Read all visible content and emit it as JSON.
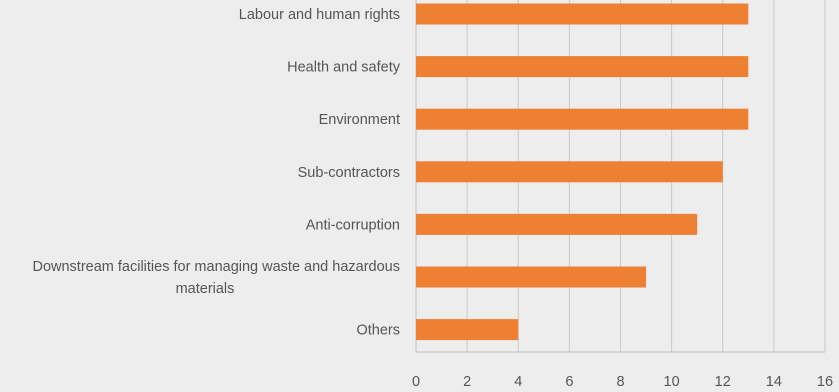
{
  "chart_data": {
    "type": "bar",
    "orientation": "horizontal",
    "categories": [
      "Labour and human rights",
      "Health and safety",
      "Environment",
      "Sub-contractors",
      "Anti-corruption",
      "Downstream facilities for managing waste and hazardous materials",
      "Others"
    ],
    "category_lines": [
      [
        "Labour and human rights"
      ],
      [
        "Health and safety"
      ],
      [
        "Environment"
      ],
      [
        "Sub-contractors"
      ],
      [
        "Anti-corruption"
      ],
      [
        "Downstream facilities for managing waste and hazardous",
        "materials"
      ],
      [
        "Others"
      ]
    ],
    "values": [
      13,
      13,
      13,
      12,
      11,
      9,
      4
    ],
    "xlim": [
      0,
      16
    ],
    "xticks": [
      0,
      2,
      4,
      6,
      8,
      10,
      12,
      14,
      16
    ],
    "grid": true,
    "legend": "none",
    "colors": {
      "bar": "#ee8033",
      "grid": "#c8c8c8",
      "axis": "#bdbdbd",
      "text": "#555555",
      "background": "#ededed"
    }
  }
}
